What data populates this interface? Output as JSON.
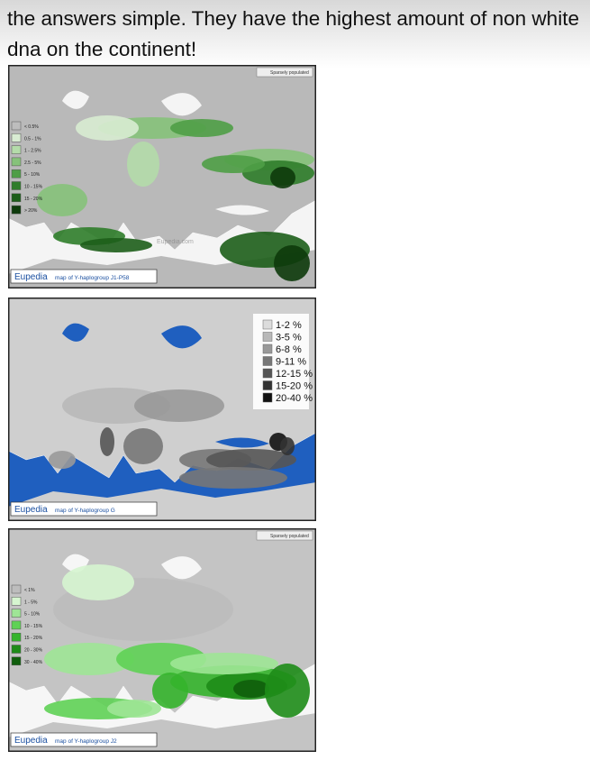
{
  "post": {
    "text": "the answers simple. They have the highest amount of non white dna on the continent!"
  },
  "maps": [
    {
      "note": "Sparsely populated",
      "watermark": "Eupedia.com",
      "brand": "Eupedia",
      "caption": "map of Y-haplogroup J1-P58",
      "sea": "#f4f4f4",
      "land": "#b9b9b9",
      "legend": [
        {
          "label": "< 0.5%",
          "color": "#bdbdbd"
        },
        {
          "label": "0.5 - 1%",
          "color": "#d8ecd2"
        },
        {
          "label": "1 - 2.5%",
          "color": "#b4dcaa"
        },
        {
          "label": "2.5 - 5%",
          "color": "#86c27a"
        },
        {
          "label": "5 - 10%",
          "color": "#4f9e46"
        },
        {
          "label": "10 - 15%",
          "color": "#2f7d2a"
        },
        {
          "label": "15 - 20%",
          "color": "#1d5e1a"
        },
        {
          "label": "> 20%",
          "color": "#0d3a0b"
        }
      ]
    },
    {
      "brand": "Eupedia",
      "caption": "map of Y-haplogroup G",
      "sea": "#1f5fbf",
      "land": "#cfcfcf",
      "legend": [
        {
          "label": "1-2 %",
          "color": "#dcdcdc"
        },
        {
          "label": "3-5 %",
          "color": "#b8b8b8"
        },
        {
          "label": "6-8 %",
          "color": "#999999"
        },
        {
          "label": "9-11 %",
          "color": "#777777"
        },
        {
          "label": "12-15 %",
          "color": "#555555"
        },
        {
          "label": "15-20 %",
          "color": "#333333"
        },
        {
          "label": "20-40 %",
          "color": "#111111"
        }
      ]
    },
    {
      "note": "Sparsely populated",
      "brand": "Eupedia",
      "caption": "map of Y-haplogroup J2",
      "sea": "#f6f6f6",
      "land": "#c4c4c4",
      "legend": [
        {
          "label": "< 1%",
          "color": "#bdbdbd"
        },
        {
          "label": "1 - 5%",
          "color": "#d6f5d0"
        },
        {
          "label": "5 - 10%",
          "color": "#9fe596"
        },
        {
          "label": "10 - 15%",
          "color": "#5fd255"
        },
        {
          "label": "15 - 20%",
          "color": "#35b42c"
        },
        {
          "label": "20 - 30%",
          "color": "#1e8c18"
        },
        {
          "label": "30 - 40%",
          "color": "#0f5e0c"
        }
      ]
    }
  ]
}
